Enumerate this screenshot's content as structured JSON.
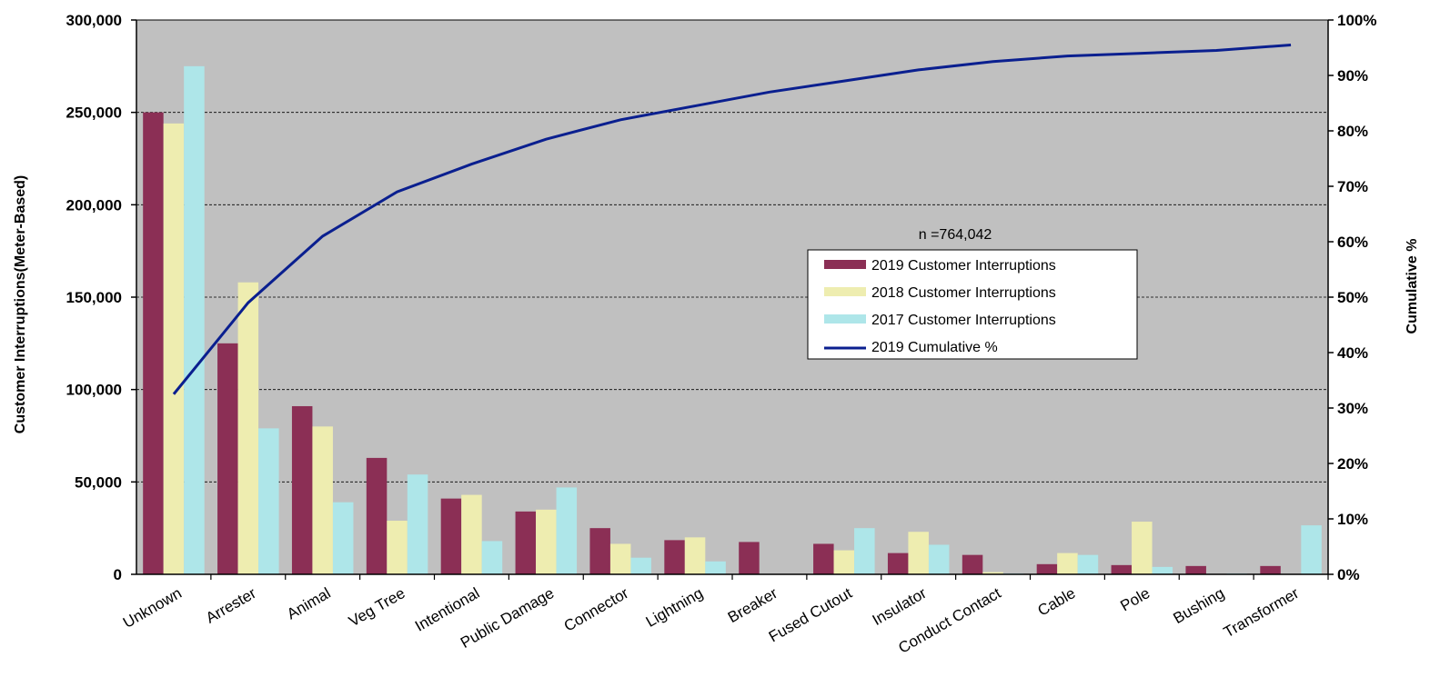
{
  "chart_data": {
    "type": "bar",
    "categories": [
      "Unknown",
      "Arrester",
      "Animal",
      "Veg Tree",
      "Intentional",
      "Public Damage",
      "Connector",
      "Lightning",
      "Breaker",
      "Fused Cutout",
      "Insulator",
      "Conduct Contact",
      "Cable",
      "Pole",
      "Bushing",
      "Transformer"
    ],
    "series": [
      {
        "name": "2019 Customer Interruptions",
        "type": "bar",
        "axis": "left",
        "color": "#8B2F55",
        "values": [
          250000,
          125000,
          91000,
          63000,
          41000,
          34000,
          25000,
          18500,
          17500,
          16500,
          11500,
          10500,
          5500,
          5000,
          4500,
          4500
        ]
      },
      {
        "name": "2018 Customer Interruptions",
        "type": "bar",
        "axis": "left",
        "color": "#EEEDB0",
        "values": [
          244000,
          158000,
          80000,
          29000,
          43000,
          35000,
          16500,
          20000,
          0,
          13000,
          23000,
          1200,
          11500,
          28500,
          0,
          0
        ]
      },
      {
        "name": "2017 Customer Interruptions",
        "type": "bar",
        "axis": "left",
        "color": "#AEE6E9",
        "values": [
          275000,
          79000,
          39000,
          54000,
          18000,
          47000,
          9000,
          7000,
          0,
          25000,
          16000,
          500,
          10500,
          4000,
          500,
          26500
        ]
      },
      {
        "name": "2019 Cumulative %",
        "type": "line",
        "axis": "right",
        "color": "#0A1F8F",
        "values": [
          32.5,
          49,
          61,
          69,
          74,
          78.5,
          82,
          84.5,
          87,
          89,
          91,
          92.5,
          93.5,
          94,
          94.5,
          95.5
        ]
      }
    ],
    "ylabel": "Customer Interruptions(Meter-Based)",
    "y2label": "Cumulative %",
    "ylim": [
      0,
      300000
    ],
    "y2lim": [
      0,
      100
    ],
    "yticks": [
      "0",
      "50,000",
      "100,000",
      "150,000",
      "200,000",
      "250,000",
      "300,000"
    ],
    "y2ticks": [
      "0%",
      "10%",
      "20%",
      "30%",
      "40%",
      "50%",
      "60%",
      "70%",
      "80%",
      "90%",
      "100%"
    ],
    "annotation": "n =764,042",
    "grid": true,
    "legend_position": "center-right",
    "plot_background": "#C0C0C0"
  }
}
